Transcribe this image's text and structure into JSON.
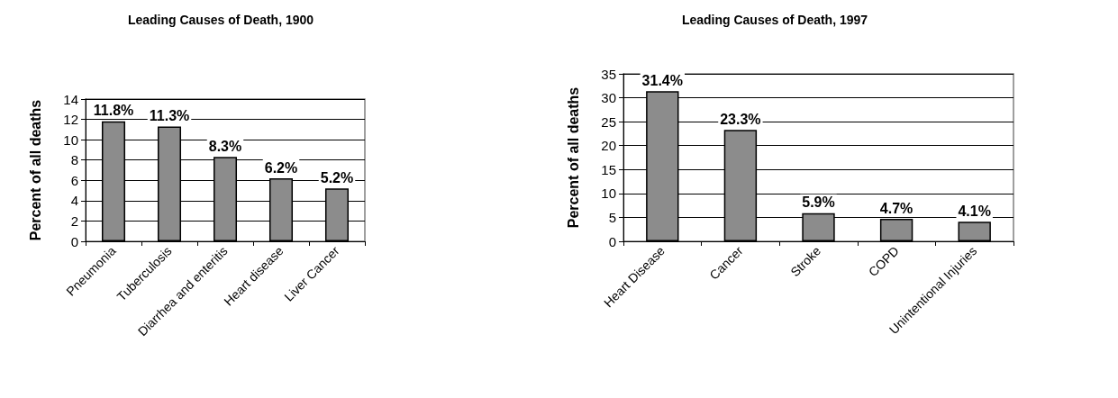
{
  "chart_data": [
    {
      "type": "bar",
      "title": "Leading Causes of Death, 1900",
      "ylabel": "Percent of all deaths",
      "categories": [
        "Pneumonia",
        "Tuberculosis",
        "Diarrhea and enteritis",
        "Heart disease",
        "Liver Cancer"
      ],
      "values": [
        11.8,
        11.3,
        8.3,
        6.2,
        5.2
      ],
      "value_labels": [
        "11.8%",
        "11.3%",
        "8.3%",
        "6.2%",
        "5.2%"
      ],
      "color": "#8c8c8c",
      "ylim": [
        0,
        14
      ],
      "yticks": [
        0,
        2,
        4,
        6,
        8,
        10,
        12,
        14
      ],
      "grid": "y"
    },
    {
      "type": "bar",
      "title": "Leading Causes of Death, 1997",
      "ylabel": "Percent of all deaths",
      "categories": [
        "Heart Disease",
        "Cancer",
        "Stroke",
        "COPD",
        "Unintentional Injuries"
      ],
      "values": [
        31.4,
        23.3,
        5.9,
        4.7,
        4.1
      ],
      "value_labels": [
        "31.4%",
        "23.3%",
        "5.9%",
        "4.7%",
        "4.1%"
      ],
      "color": "#8c8c8c",
      "ylim": [
        0,
        35
      ],
      "yticks": [
        0,
        5,
        10,
        15,
        20,
        25,
        30,
        35
      ],
      "grid": "y"
    }
  ]
}
